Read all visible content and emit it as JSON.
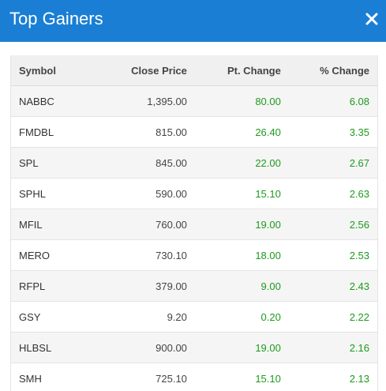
{
  "dialog": {
    "title": "Top Gainers",
    "close_icon": "close-icon"
  },
  "colors": {
    "header_bg": "#1a7fd4",
    "gain": "#1e9a1e"
  },
  "table": {
    "headers": {
      "symbol": "Symbol",
      "close_price": "Close Price",
      "pt_change": "Pt. Change",
      "pct_change": "% Change"
    },
    "rows": [
      {
        "symbol": "NABBC",
        "close_price": "1,395.00",
        "pt_change": "80.00",
        "pct_change": "6.08"
      },
      {
        "symbol": "FMDBL",
        "close_price": "815.00",
        "pt_change": "26.40",
        "pct_change": "3.35"
      },
      {
        "symbol": "SPL",
        "close_price": "845.00",
        "pt_change": "22.00",
        "pct_change": "2.67"
      },
      {
        "symbol": "SPHL",
        "close_price": "590.00",
        "pt_change": "15.10",
        "pct_change": "2.63"
      },
      {
        "symbol": "MFIL",
        "close_price": "760.00",
        "pt_change": "19.00",
        "pct_change": "2.56"
      },
      {
        "symbol": "MERO",
        "close_price": "730.10",
        "pt_change": "18.00",
        "pct_change": "2.53"
      },
      {
        "symbol": "RFPL",
        "close_price": "379.00",
        "pt_change": "9.00",
        "pct_change": "2.43"
      },
      {
        "symbol": "GSY",
        "close_price": "9.20",
        "pt_change": "0.20",
        "pct_change": "2.22"
      },
      {
        "symbol": "HLBSL",
        "close_price": "900.00",
        "pt_change": "19.00",
        "pct_change": "2.16"
      },
      {
        "symbol": "SMH",
        "close_price": "725.10",
        "pt_change": "15.10",
        "pct_change": "2.13"
      }
    ]
  }
}
